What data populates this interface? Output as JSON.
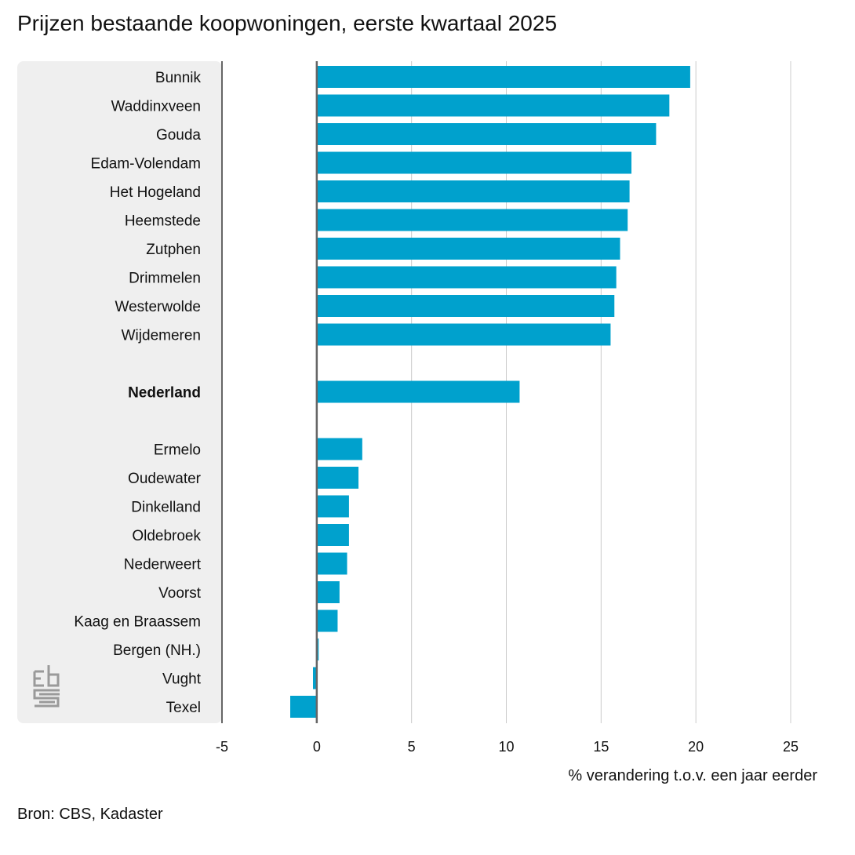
{
  "title": "Prijzen bestaande koopwoningen, eerste kwartaal 2025",
  "source": "Bron: CBS, Kadaster",
  "colors": {
    "bar": "#00a1cd",
    "panel": "#efefef",
    "grid": "#cccccc",
    "axis": "#666666"
  },
  "chart_data": {
    "type": "bar",
    "orientation": "horizontal",
    "title": "Prijzen bestaande koopwoningen, eerste kwartaal 2025",
    "xlabel": "% verandering t.o.v. een jaar eerder",
    "ylabel": "",
    "xlim": [
      -5,
      25
    ],
    "xticks": [
      -5,
      0,
      5,
      10,
      15,
      20,
      25
    ],
    "grid": true,
    "categories": [
      "Bunnik",
      "Waddinxveen",
      "Gouda",
      "Edam-Volendam",
      "Het Hogeland",
      "Heemstede",
      "Zutphen",
      "Drimmelen",
      "Westerwolde",
      "Wijdemeren",
      "Nederland",
      "Ermelo",
      "Oudewater",
      "Dinkelland",
      "Oldebroek",
      "Nederweert",
      "Voorst",
      "Kaag en Braassem",
      "Bergen (NH.)",
      "Vught",
      "Texel"
    ],
    "values": [
      19.7,
      18.6,
      17.9,
      16.6,
      16.5,
      16.4,
      16.0,
      15.8,
      15.7,
      15.5,
      10.7,
      2.4,
      2.2,
      1.7,
      1.7,
      1.6,
      1.2,
      1.1,
      0.1,
      -0.2,
      -1.4
    ],
    "highlight": [
      "Nederland"
    ]
  }
}
